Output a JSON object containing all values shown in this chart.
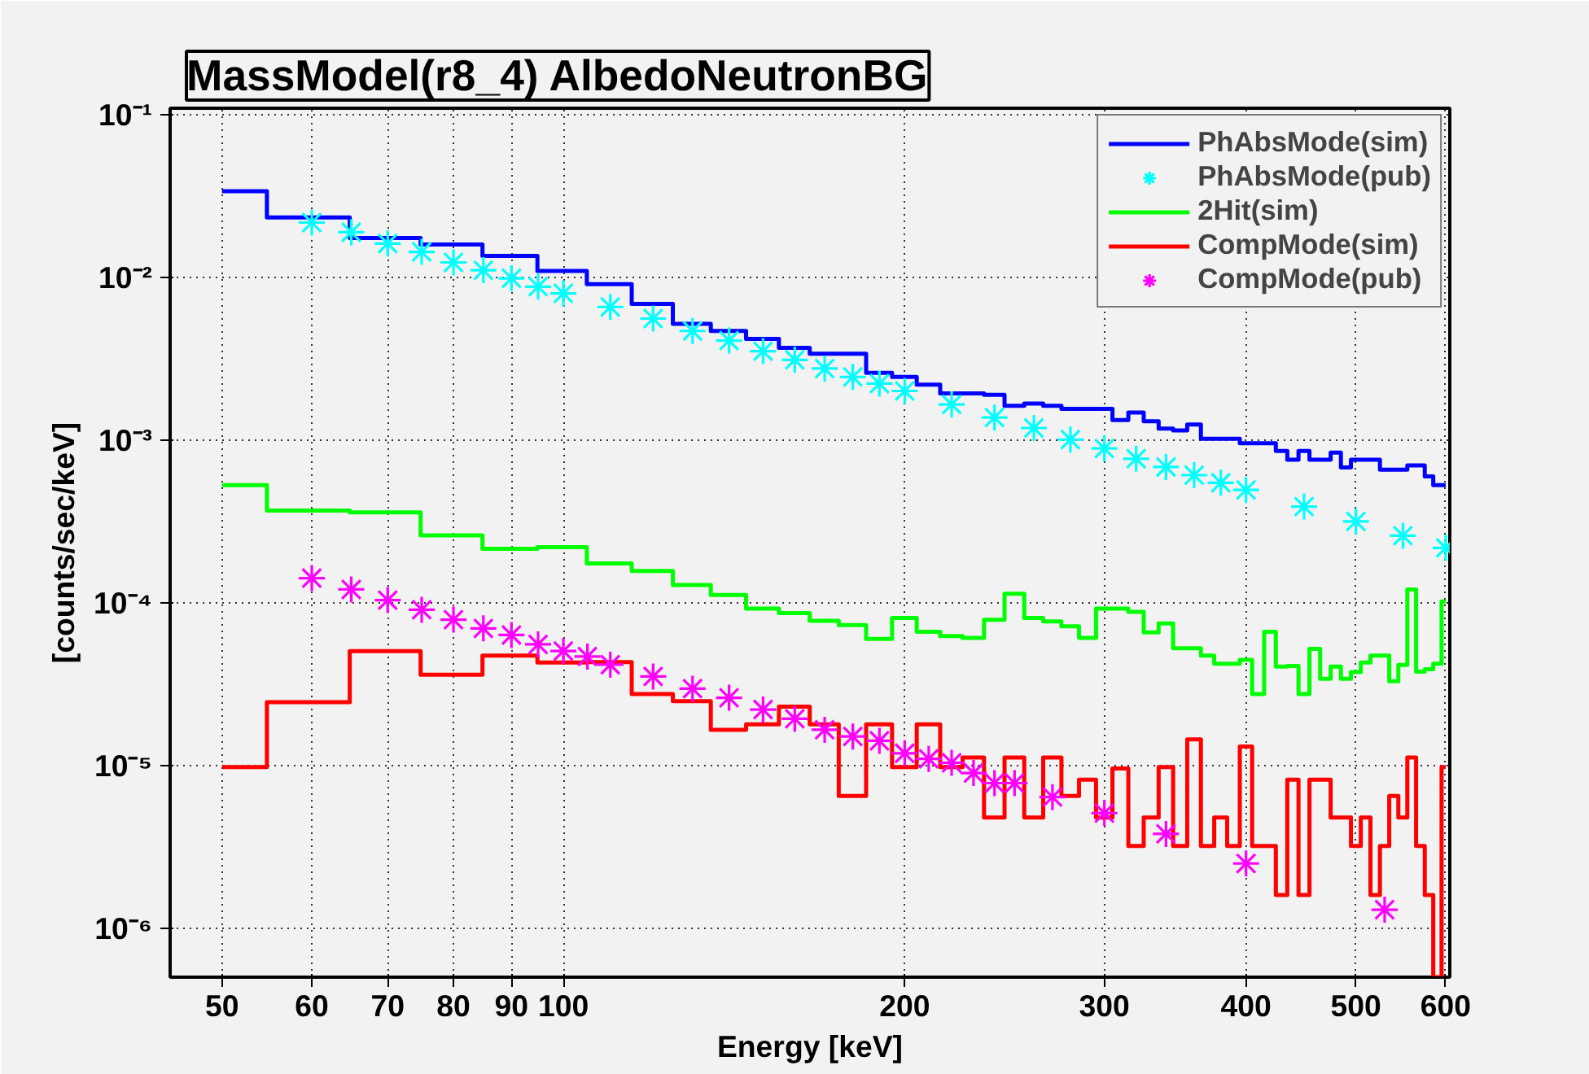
{
  "chart_data": {
    "type": "step",
    "title": "MassModel(r8_4) AlbedoNeutronBG",
    "xlabel": "Energy [keV]",
    "ylabel": "[counts/sec/keV]",
    "log": "xy",
    "grid": true,
    "legend": "top right",
    "xlim": [
      45,
      605
    ],
    "xticks": [
      50,
      60,
      70,
      80,
      90,
      100,
      200,
      300,
      400,
      500,
      600
    ],
    "ylim": [
      5e-07,
      0.11
    ],
    "yticks": [
      {
        "value": 1e-06,
        "label": "10⁻⁶"
      },
      {
        "value": 1e-05,
        "label": "10⁻⁵"
      },
      {
        "value": 0.0001,
        "label": "10⁻⁴"
      },
      {
        "value": 0.001,
        "label": "10⁻³"
      },
      {
        "value": 0.01,
        "label": "10⁻²"
      },
      {
        "value": 0.1,
        "label": "10⁻¹"
      }
    ],
    "series": [
      {
        "name": "PhAbsMode(sim)",
        "color": "#0000ff",
        "x": [
          50,
          60,
          70,
          80,
          90,
          100,
          110,
          120,
          130,
          140,
          150,
          160,
          170,
          180,
          190,
          200,
          210,
          220,
          230,
          240,
          250,
          260,
          270,
          280,
          290,
          300,
          310,
          320,
          330,
          340,
          350,
          360,
          370,
          380,
          390,
          400,
          410,
          420,
          430,
          440,
          450,
          460,
          470,
          480,
          490,
          500,
          510,
          520,
          530,
          540,
          550,
          560,
          570,
          580,
          590,
          600
        ],
        "values": [
          0.034,
          0.0234,
          0.0175,
          0.016,
          0.0136,
          0.011,
          0.0091,
          0.0069,
          0.0052,
          0.0047,
          0.0042,
          0.0037,
          0.0034,
          0.0034,
          0.0026,
          0.00245,
          0.0022,
          0.00194,
          0.00194,
          0.0019,
          0.00163,
          0.00168,
          0.00163,
          0.00156,
          0.00156,
          0.00156,
          0.00133,
          0.00148,
          0.00131,
          0.00118,
          0.00115,
          0.00125,
          0.00102,
          0.00102,
          0.00102,
          0.00096,
          0.00096,
          0.00096,
          0.00086,
          0.00076,
          0.00086,
          0.00076,
          0.00076,
          0.00084,
          0.00068,
          0.00076,
          0.00076,
          0.00076,
          0.00066,
          0.00066,
          0.00066,
          0.0007,
          0.0007,
          0.0006,
          0.00053,
          0.00053
        ]
      },
      {
        "name": "PhAbsMode(pub)",
        "type": "scatter",
        "marker": "cross",
        "color": "#00ffff",
        "x": [
          60,
          65,
          70,
          75,
          80,
          85,
          90,
          95,
          100,
          110,
          120,
          130,
          140,
          150,
          160,
          170,
          180,
          190,
          200,
          220,
          240,
          260,
          280,
          300,
          320,
          340,
          360,
          380,
          400,
          450,
          500,
          550,
          600
        ],
        "values": [
          0.0218,
          0.019,
          0.0162,
          0.0144,
          0.0124,
          0.0111,
          0.0099,
          0.0088,
          0.008,
          0.0066,
          0.0056,
          0.0047,
          0.0041,
          0.00353,
          0.00312,
          0.00276,
          0.00245,
          0.00223,
          0.00201,
          0.00166,
          0.00138,
          0.00119,
          0.00101,
          0.00089,
          0.00077,
          0.000685,
          0.00061,
          0.000548,
          0.000495,
          0.000391,
          0.000317,
          0.000259,
          0.000218
        ]
      },
      {
        "name": "2Hit(sim)",
        "color": "#00ff00",
        "x": [
          50,
          60,
          70,
          80,
          90,
          100,
          110,
          120,
          130,
          140,
          150,
          160,
          170,
          180,
          190,
          200,
          210,
          220,
          230,
          240,
          250,
          260,
          270,
          280,
          290,
          300,
          310,
          320,
          330,
          340,
          350,
          360,
          370,
          380,
          390,
          400,
          410,
          420,
          430,
          440,
          450,
          460,
          470,
          480,
          490,
          500,
          510,
          520,
          530,
          540,
          550,
          560,
          570,
          580,
          590,
          600
        ],
        "values": [
          0.00053,
          0.00037,
          0.00036,
          0.00026,
          0.000215,
          0.00022,
          0.000175,
          0.000157,
          0.000129,
          0.000112,
          9.23e-05,
          8.67e-05,
          7.76e-05,
          7.3e-05,
          6e-05,
          8.07e-05,
          6.65e-05,
          6.25e-05,
          6.1e-05,
          7.88e-05,
          0.000114,
          8.07e-05,
          7.7e-05,
          7.18e-05,
          6.1e-05,
          9.23e-05,
          9.23e-05,
          8.81e-05,
          6.59e-05,
          7.48e-05,
          5.26e-05,
          5.26e-05,
          4.75e-05,
          4.23e-05,
          4.23e-05,
          4.47e-05,
          2.75e-05,
          6.65e-05,
          4.06e-05,
          4.1e-05,
          2.75e-05,
          5.21e-05,
          3.42e-05,
          4.06e-05,
          3.42e-05,
          3.76e-05,
          4.3e-05,
          4.75e-05,
          4.75e-05,
          3.3e-05,
          4.15e-05,
          0.000121,
          3.78e-05,
          3.91e-05,
          4.23e-05,
          0.000102
        ]
      },
      {
        "name": "CompMode(sim)",
        "color": "#ff0000",
        "x": [
          50,
          60,
          70,
          80,
          90,
          100,
          110,
          120,
          130,
          140,
          150,
          160,
          170,
          180,
          190,
          200,
          210,
          220,
          230,
          240,
          250,
          260,
          270,
          280,
          290,
          300,
          310,
          320,
          330,
          340,
          350,
          360,
          370,
          380,
          390,
          400,
          410,
          420,
          430,
          440,
          450,
          460,
          470,
          480,
          490,
          500,
          510,
          520,
          530,
          540,
          550,
          560,
          570,
          580,
          590,
          600
        ],
        "values": [
          9.8e-06,
          2.45e-05,
          5.06e-05,
          3.62e-05,
          4.75e-05,
          4.3e-05,
          4.33e-05,
          2.75e-05,
          2.49e-05,
          1.66e-05,
          1.79e-05,
          2.3e-05,
          1.79e-05,
          6.5e-06,
          1.79e-05,
          9.8e-06,
          1.79e-05,
          9.8e-06,
          1.12e-05,
          4.8e-06,
          1.12e-05,
          4.8e-06,
          1.12e-05,
          6.5e-06,
          8.2e-06,
          4.8e-06,
          9.6e-06,
          3.2e-06,
          4.8e-06,
          9.8e-06,
          3.2e-06,
          1.45e-05,
          3.2e-06,
          4.8e-06,
          3.2e-06,
          1.31e-05,
          3.2e-06,
          3.2e-06,
          1.6e-06,
          8.2e-06,
          1.6e-06,
          8.2e-06,
          8.2e-06,
          4.8e-06,
          4.8e-06,
          3.2e-06,
          4.8e-06,
          1.6e-06,
          3.2e-06,
          6.5e-06,
          4.8e-06,
          1.12e-05,
          3.2e-06,
          1.6e-06,
          5e-07,
          9.8e-06
        ]
      },
      {
        "name": "CompMode(pub)",
        "type": "scatter",
        "marker": "cross",
        "color": "#ff00ff",
        "x": [
          60,
          65,
          70,
          75,
          80,
          85,
          90,
          95,
          100,
          105,
          110,
          120,
          130,
          140,
          150,
          160,
          170,
          180,
          190,
          200,
          210,
          220,
          230,
          240,
          250,
          270,
          300,
          340,
          400,
          530
        ],
        "values": [
          0.000142,
          0.000121,
          0.000104,
          9.08e-05,
          7.89e-05,
          6.97e-05,
          6.35e-05,
          5.56e-05,
          5.06e-05,
          4.68e-05,
          4.17e-05,
          3.53e-05,
          2.97e-05,
          2.61e-05,
          2.21e-05,
          1.94e-05,
          1.66e-05,
          1.51e-05,
          1.42e-05,
          1.19e-05,
          1.1e-05,
          1.04e-05,
          9e-06,
          7.8e-06,
          7.8e-06,
          6.4e-06,
          5.1e-06,
          3.8e-06,
          2.5e-06,
          1.3e-06
        ]
      }
    ]
  }
}
